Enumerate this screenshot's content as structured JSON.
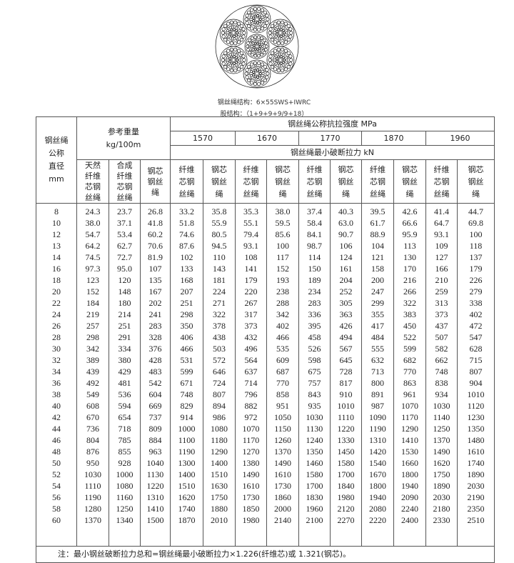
{
  "captions": {
    "structure": "钢丝绳结构：6×55SWS+IWRC",
    "strand": "股结构：（1+9+9+9/9+18）"
  },
  "table": {
    "diameter_header": [
      "钢丝绳",
      "公称",
      "直径",
      "mm"
    ],
    "weight_header": [
      "参考重量",
      "kg/100m"
    ],
    "strength_header": "钢丝绳公称抗拉强度  MPa",
    "grades": [
      "1570",
      "1670",
      "1770",
      "1870",
      "1960"
    ],
    "force_header": "钢丝绳最小破断拉力  kN",
    "weight_subheaders": [
      [
        "天然",
        "纤维",
        "芯钢",
        "丝绳"
      ],
      [
        "合成",
        "纤维",
        "芯钢",
        "丝绳"
      ],
      [
        "钢芯",
        "钢丝",
        "绳"
      ]
    ],
    "force_subheaders": [
      [
        "纤维",
        "芯钢",
        "丝绳"
      ],
      [
        "钢芯",
        "钢丝",
        "绳"
      ]
    ],
    "rows": [
      [
        "8",
        "24.3",
        "23.7",
        "26.8",
        "33.2",
        "35.8",
        "35.3",
        "38.0",
        "37.4",
        "40.3",
        "39.5",
        "42.6",
        "41.4",
        "44.7"
      ],
      [
        "10",
        "38.0",
        "37.1",
        "41.8",
        "51.8",
        "55.9",
        "55.1",
        "59.5",
        "58.4",
        "63.0",
        "61.7",
        "66.6",
        "64.7",
        "69.8"
      ],
      [
        "12",
        "54.7",
        "53.4",
        "60.2",
        "74.6",
        "80.5",
        "79.4",
        "85.6",
        "84.1",
        "90.7",
        "88.9",
        "95.9",
        "93.1",
        "100"
      ],
      [
        "13",
        "64.2",
        "62.7",
        "70.6",
        "87.6",
        "94.5",
        "93.1",
        "100",
        "98.7",
        "106",
        "104",
        "113",
        "109",
        "118"
      ],
      [
        "14",
        "74.5",
        "72.7",
        "81.9",
        "102",
        "110",
        "108",
        "117",
        "114",
        "124",
        "121",
        "130",
        "127",
        "137"
      ],
      [
        "16",
        "97.3",
        "95.0",
        "107",
        "133",
        "143",
        "141",
        "152",
        "150",
        "161",
        "158",
        "170",
        "166",
        "179"
      ],
      [
        "18",
        "123",
        "120",
        "135",
        "168",
        "181",
        "179",
        "193",
        "189",
        "204",
        "200",
        "216",
        "210",
        "226"
      ],
      [
        "20",
        "152",
        "148",
        "167",
        "207",
        "224",
        "220",
        "238",
        "234",
        "252",
        "247",
        "266",
        "259",
        "279"
      ],
      [
        "22",
        "184",
        "180",
        "202",
        "251",
        "271",
        "267",
        "288",
        "283",
        "305",
        "299",
        "322",
        "313",
        "338"
      ],
      [
        "24",
        "219",
        "214",
        "241",
        "298",
        "322",
        "317",
        "342",
        "336",
        "363",
        "355",
        "383",
        "373",
        "402"
      ],
      [
        "26",
        "257",
        "251",
        "283",
        "350",
        "378",
        "373",
        "402",
        "395",
        "426",
        "417",
        "450",
        "437",
        "472"
      ],
      [
        "28",
        "298",
        "291",
        "328",
        "406",
        "438",
        "432",
        "466",
        "458",
        "494",
        "484",
        "522",
        "507",
        "547"
      ],
      [
        "30",
        "342",
        "334",
        "376",
        "466",
        "503",
        "496",
        "535",
        "526",
        "567",
        "555",
        "599",
        "582",
        "628"
      ],
      [
        "32",
        "389",
        "380",
        "428",
        "531",
        "572",
        "564",
        "609",
        "598",
        "645",
        "632",
        "682",
        "662",
        "715"
      ],
      [
        "34",
        "439",
        "429",
        "483",
        "599",
        "646",
        "637",
        "687",
        "675",
        "728",
        "713",
        "770",
        "748",
        "807"
      ],
      [
        "36",
        "492",
        "481",
        "542",
        "671",
        "724",
        "714",
        "770",
        "757",
        "817",
        "800",
        "863",
        "838",
        "904"
      ],
      [
        "38",
        "549",
        "536",
        "604",
        "748",
        "807",
        "796",
        "858",
        "843",
        "910",
        "891",
        "961",
        "934",
        "1010"
      ],
      [
        "40",
        "608",
        "594",
        "669",
        "829",
        "894",
        "882",
        "951",
        "935",
        "1010",
        "987",
        "1070",
        "1030",
        "1120"
      ],
      [
        "42",
        "670",
        "654",
        "737",
        "914",
        "986",
        "972",
        "1050",
        "1030",
        "1110",
        "1090",
        "1170",
        "1140",
        "1230"
      ],
      [
        "44",
        "736",
        "718",
        "809",
        "1000",
        "1080",
        "1070",
        "1150",
        "1130",
        "1220",
        "1190",
        "1290",
        "1250",
        "1350"
      ],
      [
        "46",
        "804",
        "785",
        "884",
        "1100",
        "1180",
        "1170",
        "1260",
        "1240",
        "1330",
        "1310",
        "1410",
        "1370",
        "1480"
      ],
      [
        "48",
        "876",
        "855",
        "963",
        "1190",
        "1290",
        "1270",
        "1370",
        "1350",
        "1450",
        "1420",
        "1530",
        "1490",
        "1610"
      ],
      [
        "50",
        "950",
        "928",
        "1040",
        "1300",
        "1400",
        "1380",
        "1490",
        "1460",
        "1580",
        "1540",
        "1660",
        "1620",
        "1740"
      ],
      [
        "52",
        "1030",
        "1000",
        "1130",
        "1400",
        "1510",
        "1490",
        "1610",
        "1580",
        "1700",
        "1670",
        "1800",
        "1750",
        "1890"
      ],
      [
        "54",
        "1110",
        "1080",
        "1220",
        "1510",
        "1630",
        "1610",
        "1730",
        "1700",
        "1840",
        "1800",
        "1940",
        "1890",
        "2030"
      ],
      [
        "56",
        "1190",
        "1160",
        "1310",
        "1620",
        "1750",
        "1730",
        "1860",
        "1830",
        "1980",
        "1940",
        "2090",
        "2030",
        "2190"
      ],
      [
        "58",
        "1280",
        "1250",
        "1410",
        "1740",
        "1880",
        "1850",
        "2000",
        "1960",
        "2120",
        "2080",
        "2240",
        "2180",
        "2350"
      ],
      [
        "60",
        "1370",
        "1340",
        "1500",
        "1870",
        "2010",
        "1980",
        "2140",
        "2100",
        "2270",
        "2220",
        "2400",
        "2330",
        "2510"
      ]
    ],
    "note": "注：最小钢丝破断拉力总和=钢丝绳最小破断拉力×1.226(纤维芯)或 1.321(钢芯)。"
  }
}
